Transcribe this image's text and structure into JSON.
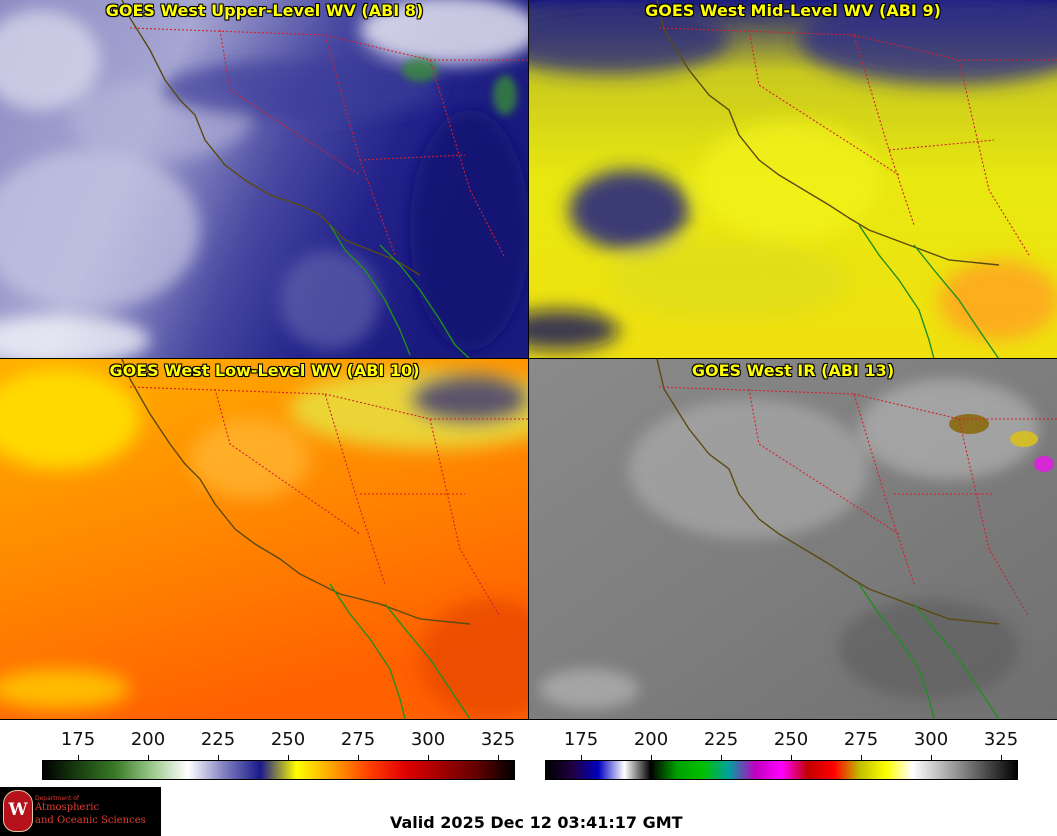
{
  "panels": [
    {
      "title": "GOES West Upper-Level WV (ABI 8)",
      "palette": "wv-upper"
    },
    {
      "title": "GOES West Mid-Level WV (ABI 9)",
      "palette": "wv-mid"
    },
    {
      "title": "GOES West Low-Level WV (ABI 10)",
      "palette": "wv-low"
    },
    {
      "title": "GOES West IR (ABI 13)",
      "palette": "ir"
    }
  ],
  "colors": {
    "state_border": "#d4202a",
    "coastline": "#5a4a12",
    "mexico_coast": "#1f8f1f",
    "title_text": "#ffff00"
  },
  "scales": {
    "ticks": [
      "175",
      "200",
      "225",
      "250",
      "275",
      "300",
      "325"
    ],
    "wv_gradient": [
      "#000000",
      "#1a4010",
      "#3a7a28",
      "#9ac88a",
      "#ffffff",
      "#8080c0",
      "#1a1a8a",
      "#ffff00",
      "#ffa000",
      "#ff4000",
      "#e00000",
      "#a00000",
      "#600000",
      "#000000"
    ],
    "ir_gradient": [
      "#000000",
      "#200040",
      "#0000c0",
      "#ffffff",
      "#000000",
      "#00a000",
      "#00c000",
      "#00a0a0",
      "#c000c0",
      "#ff00ff",
      "#c00000",
      "#ff0000",
      "#c0c000",
      "#ffff00",
      "#ffffff",
      "#c0c0c0",
      "#808080",
      "#404040",
      "#000000"
    ]
  },
  "logo": {
    "seal_letter": "W",
    "line1": "Department of",
    "line2": "Atmospheric",
    "line3": "and Oceanic Sciences"
  },
  "footer": {
    "valid_text": "Valid 2025 Dec 12 03:41:17 GMT"
  }
}
